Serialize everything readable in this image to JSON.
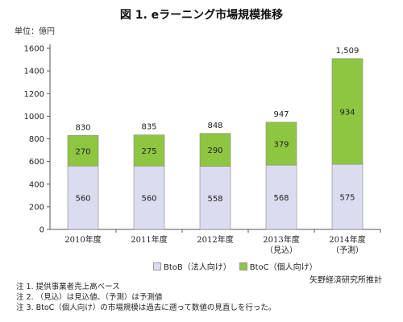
{
  "chart_data": {
    "type": "bar",
    "stacked": true,
    "title": "図 1. eラーニング市場規模推移",
    "unit_label": "単位：億円",
    "categories": [
      {
        "line1": "2010年度",
        "line2": ""
      },
      {
        "line1": "2011年度",
        "line2": ""
      },
      {
        "line1": "2012年度",
        "line2": ""
      },
      {
        "line1": "2013年度",
        "line2": "（見込）"
      },
      {
        "line1": "2014年度",
        "line2": "（予測）"
      }
    ],
    "series": [
      {
        "name": "BtoB（法人向け）",
        "values": [
          560,
          560,
          558,
          568,
          575
        ],
        "color": "#dcdcf0"
      },
      {
        "name": "BtoC（個人向け）",
        "values": [
          270,
          275,
          290,
          379,
          934
        ],
        "color": "#8ec641"
      }
    ],
    "totals": [
      "830",
      "835",
      "848",
      "947",
      "1,509"
    ],
    "ylim": [
      0,
      1600
    ],
    "yticks": [
      "0",
      "200",
      "400",
      "600",
      "800",
      "1000",
      "1200",
      "1400",
      "1600"
    ],
    "grid": false,
    "legend_position": "bottom"
  },
  "source": "矢野経済研究所推計",
  "notes": [
    "注 1. 提供事業者売上高ベース",
    "注 2. （見込）は見込値、（予測）は予測値",
    "注 3. BtoC（個人向け）の市場規模は過去に遡って数値の見直しを行った。"
  ]
}
